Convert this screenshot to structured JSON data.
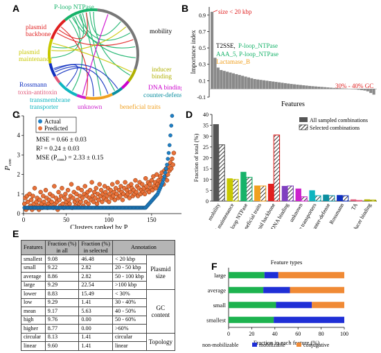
{
  "panels": {
    "a": "A",
    "b": "B",
    "c": "C",
    "d": "D",
    "e": "E",
    "f": "F"
  },
  "colors": {
    "bar_dark": "#555555",
    "scatter_orange": "#e8713a",
    "scatter_blue": "#1f7fc4",
    "nonmob": "#1db34f",
    "mob": "#1f2fd6",
    "conj": "#f08a35",
    "table_header": "#b5b5b5"
  },
  "panel_a": {
    "labels": [
      {
        "text": "P-loop NTPase",
        "color": "#17b36a"
      },
      {
        "text": "plasmid\nbackbone",
        "color": "#e02020"
      },
      {
        "text": "mobility",
        "color": "#000000"
      },
      {
        "text": "plasmid\nmaintenance",
        "color": "#c8c800"
      },
      {
        "text": "inducer\nbinding",
        "color": "#b0b000"
      },
      {
        "text": "DNA binding",
        "color": "#cc00cc"
      },
      {
        "text": "Rossmann",
        "color": "#1030c0"
      },
      {
        "text": "counter-defense",
        "color": "#0b8fa0"
      },
      {
        "text": "toxin-antitoxin",
        "color": "#e05a7a"
      },
      {
        "text": "transmembrane\ntransporter",
        "color": "#0fb5c0"
      },
      {
        "text": "unknown",
        "color": "#cc22cc"
      },
      {
        "text": "beneficial traits",
        "color": "#f0a020"
      }
    ]
  },
  "chart_data": [
    {
      "panel": "B",
      "type": "bar",
      "xlabel": "Features",
      "ylabel": "Importance index",
      "ylim": [
        -0.1,
        1.0
      ],
      "yticks": [
        "-0.1",
        "0.1",
        "0.3",
        "0.5",
        "0.7",
        "0.9"
      ],
      "values": [
        0.94,
        0.38,
        0.26,
        0.23,
        0.22,
        0.21,
        0.2,
        0.19,
        0.18,
        0.17,
        0.16,
        0.15,
        0.14,
        0.13,
        0.12,
        0.115,
        0.11,
        0.105,
        0.1,
        0.095,
        0.09,
        0.085,
        0.08,
        0.075,
        0.07,
        0.065,
        0.06,
        0.056,
        0.052,
        0.048,
        0.044,
        0.04,
        0.036,
        0.033,
        0.03,
        0.027,
        0.024,
        0.021,
        0.018,
        0.015,
        0.012,
        0.01,
        0.008,
        0.006,
        0.004,
        0.002,
        0.0,
        -0.005,
        -0.01,
        -0.015,
        -0.02,
        -0.03,
        -0.05,
        -0.07
      ],
      "annotations": [
        {
          "text": "size < 20 kbp",
          "color": "#e02020"
        },
        {
          "text": "T2SSE, ",
          "color": "#000000"
        },
        {
          "text": "P-loop_NTPase",
          "color": "#17b36a"
        },
        {
          "text": "AAA_5, P-loop_NTPase",
          "color": "#17b36a"
        },
        {
          "text": "Lactamase_B",
          "color": "#f0a020"
        },
        {
          "text": "30% - 40% GC",
          "color": "#e02020"
        }
      ]
    },
    {
      "panel": "C",
      "type": "scatter",
      "xlabel": "Clusters ranked by P",
      "xlabel_sub": "com",
      "ylabel": "P",
      "ylabel_sub": "com",
      "xlim": [
        0,
        185
      ],
      "ylim": [
        0,
        5
      ],
      "xticks": [
        "0",
        "50",
        "100",
        "150"
      ],
      "yticks": [
        "0",
        "1",
        "2",
        "3",
        "4",
        "5"
      ],
      "stats": [
        "MSE = 0.66 ± 0.03",
        "R² = 0.24 ± 0.03",
        "MSE (P",
        "com",
        ") = 2.33 ± 0.15"
      ],
      "legend": [
        "Actual",
        "Predicted"
      ],
      "series": [
        {
          "name": "Actual",
          "values": [
            0.3,
            0.3,
            0.3,
            0.3,
            0.3,
            0.3,
            0.3,
            0.3,
            0.3,
            0.3,
            0.3,
            0.3,
            0.3,
            0.3,
            0.3,
            0.3,
            0.3,
            0.3,
            0.3,
            0.3,
            0.3,
            0.3,
            0.3,
            0.3,
            0.3,
            0.3,
            0.3,
            0.3,
            0.3,
            0.3,
            0.3,
            0.3,
            0.3,
            0.3,
            0.3,
            0.3,
            0.3,
            0.3,
            0.3,
            0.3,
            0.3,
            0.3,
            0.3,
            0.3,
            0.3,
            0.3,
            0.3,
            0.3,
            0.3,
            0.3,
            0.3,
            0.3,
            0.3,
            0.3,
            0.3,
            0.3,
            0.3,
            0.3,
            0.3,
            0.3,
            0.3,
            0.3,
            0.3,
            0.3,
            0.3,
            0.3,
            0.3,
            0.3,
            0.3,
            0.3,
            0.3,
            0.3,
            0.3,
            0.3,
            0.3,
            0.3,
            0.3,
            0.3,
            0.3,
            0.3,
            0.3,
            0.3,
            0.3,
            0.3,
            0.3,
            0.3,
            0.3,
            0.3,
            0.3,
            0.3,
            0.3,
            0.3,
            0.3,
            0.3,
            0.3,
            0.3,
            0.3,
            0.3,
            0.3,
            0.3,
            0.3,
            0.3,
            0.3,
            0.3,
            0.3,
            0.3,
            0.3,
            0.3,
            0.3,
            0.3,
            0.3,
            0.3,
            0.3,
            0.3,
            0.3,
            0.3,
            0.3,
            0.3,
            0.3,
            0.3,
            0.3,
            0.3,
            0.3,
            0.3,
            0.3,
            0.3,
            0.3,
            0.3,
            0.3,
            0.3,
            0.3,
            0.3,
            0.3,
            0.3,
            0.3,
            0.3,
            0.3,
            0.3,
            0.3,
            0.3,
            0.3,
            0.3,
            0.3,
            0.35,
            0.4,
            0.45,
            0.5,
            0.55,
            0.6,
            0.65,
            0.7,
            0.75,
            0.8,
            0.85,
            0.9,
            0.95,
            1.0,
            1.1,
            1.2,
            1.3,
            1.4,
            1.5,
            1.6,
            1.75,
            1.9,
            2.1,
            2.3,
            2.5,
            2.8,
            3.1,
            3.5,
            4.0,
            4.5,
            5.0
          ]
        },
        {
          "name": "Predicted",
          "values": [
            0.5,
            0.8,
            0.2,
            0.9,
            0.6,
            0.3,
            1.0,
            0.4,
            0.7,
            0.2,
            0.9,
            0.5,
            1.3,
            0.3,
            0.6,
            0.8,
            0.4,
            0.2,
            0.7,
            1.1,
            0.5,
            0.3,
            0.9,
            0.6,
            0.4,
            1.2,
            0.8,
            0.3,
            0.5,
            0.7,
            1.0,
            0.4,
            0.6,
            0.9,
            0.3,
            1.4,
            0.5,
            0.8,
            0.6,
            0.2,
            1.1,
            0.7,
            0.4,
            0.9,
            1.3,
            0.5,
            0.3,
            0.8,
            1.0,
            0.6,
            0.4,
            1.2,
            0.7,
            0.5,
            0.9,
            1.5,
            0.3,
            0.8,
            1.1,
            0.6,
            0.4,
            1.0,
            0.7,
            1.3,
            0.5,
            0.9,
            0.6,
            1.2,
            0.8,
            0.4,
            1.0,
            1.4,
            0.6,
            0.9,
            1.1,
            0.5,
            0.8,
            1.2,
            0.7,
            1.6,
            0.9,
            0.6,
            1.1,
            0.8,
            1.3,
            0.5,
            1.0,
            0.7,
            1.5,
            0.9,
            1.2,
            0.6,
            1.0,
            0.8,
            1.4,
            1.1,
            0.7,
            0.9,
            1.3,
            0.6,
            1.0,
            1.2,
            0.8,
            1.5,
            0.9,
            1.1,
            0.7,
            1.3,
            1.0,
            1.6,
            0.8,
            1.2,
            0.9,
            1.4,
            1.1,
            0.7,
            1.0,
            1.3,
            1.6,
            0.9,
            1.2,
            1.0,
            1.4,
            0.8,
            1.1,
            1.5,
            1.3,
            0.9,
            1.2,
            1.0,
            1.7,
            1.1,
            1.4,
            0.9,
            1.3,
            1.6,
            1.0,
            1.2,
            1.5,
            1.1,
            1.3,
            1.0,
            1.8,
            1.4,
            1.2,
            1.6,
            1.1,
            1.5,
            1.3,
            1.7,
            1.2,
            1.9,
            1.4,
            1.6,
            1.3,
            2.0,
            1.5,
            1.7,
            1.4,
            1.9,
            1.6,
            2.1,
            1.8,
            1.5,
            2.2,
            1.9,
            2.3,
            1.7,
            2.0,
            2.4,
            2.2,
            2.6,
            2.3,
            2.8,
            2.5,
            3.1
          ]
        }
      ]
    },
    {
      "panel": "D",
      "type": "bar",
      "ylabel": "Fraction of total (%)",
      "ylim": [
        0,
        40
      ],
      "yticks": [
        "0",
        "5",
        "10",
        "15",
        "20",
        "25",
        "30",
        "35",
        "40"
      ],
      "categories": [
        "mobility",
        "plasmid maintenance",
        "P-loop NTPase",
        "beneficial traits",
        "plasmid backbone",
        "DNA binding",
        "unknown",
        "transmembrane transporters",
        "counter-defense",
        "Rossmann",
        "TA",
        "inducer binding"
      ],
      "bar_colors": [
        "#555555",
        "#c8c800",
        "#17b36a",
        "#f0a020",
        "#e02020",
        "#8040c0",
        "#cc22cc",
        "#0fb5c0",
        "#0b8fa0",
        "#1030c0",
        "#e05a7a",
        "#b0b000"
      ],
      "legend": [
        "All sampled combinations",
        "Selected combinations"
      ],
      "series": [
        {
          "name": "All sampled combinations",
          "values": [
            35.5,
            10.5,
            13.5,
            7.2,
            8.0,
            7.0,
            5.8,
            5.0,
            3.0,
            2.8,
            0.8,
            0.8
          ]
        },
        {
          "name": "Selected combinations",
          "values": [
            26.0,
            10.0,
            11.0,
            7.0,
            30.5,
            7.0,
            2.0,
            2.5,
            2.5,
            2.5,
            0.3,
            0.5
          ]
        }
      ]
    },
    {
      "panel": "F",
      "type": "bar",
      "stacked": true,
      "orientation": "horizontal",
      "title": "Feature types",
      "xlabel": "Fraction in each feature (%)",
      "xlim": [
        0,
        100
      ],
      "xticks": [
        "0",
        "20",
        "40",
        "60",
        "80",
        "100"
      ],
      "categories": [
        "large",
        "average",
        "small",
        "smallest"
      ],
      "series": [
        {
          "name": "non-mobilizable",
          "values": [
            31,
            30,
            41,
            39
          ]
        },
        {
          "name": "mobilizable",
          "values": [
            12,
            23,
            31,
            61
          ]
        },
        {
          "name": "conjugative",
          "values": [
            57,
            47,
            28,
            0
          ]
        }
      ]
    }
  ],
  "table": {
    "headers": [
      "Features",
      "Fraction (%)\nin all",
      "Fraction (%)\nin selected",
      "Annotation"
    ],
    "rows": [
      [
        "smallest",
        "9.08",
        "46.48",
        "< 20 kbp"
      ],
      [
        "small",
        "9.22",
        "2.82",
        "20 - 50 kbp"
      ],
      [
        "average",
        "8.86",
        "2.82",
        "50 - 100 kbp"
      ],
      [
        "large",
        "9.29",
        "22.54",
        ">100 kbp"
      ],
      [
        "lower",
        "8.83",
        "15.49",
        "< 30%"
      ],
      [
        "low",
        "9.29",
        "1.41",
        "30 - 40%"
      ],
      [
        "mean",
        "9.17",
        "5.63",
        "40 - 50%"
      ],
      [
        "high",
        "9.76",
        "0.00",
        "50 - 60%"
      ],
      [
        "higher",
        "8.77",
        "0.00",
        ">60%"
      ],
      [
        "circular",
        "8.13",
        "1.41",
        "circular"
      ],
      [
        "linear",
        "9.60",
        "1.41",
        "linear"
      ]
    ],
    "groups": [
      {
        "label": "Plasmid\nsize",
        "rows": 4
      },
      {
        "label": "GC\ncontent",
        "rows": 5
      },
      {
        "label": "Topology",
        "rows": 2
      }
    ]
  }
}
